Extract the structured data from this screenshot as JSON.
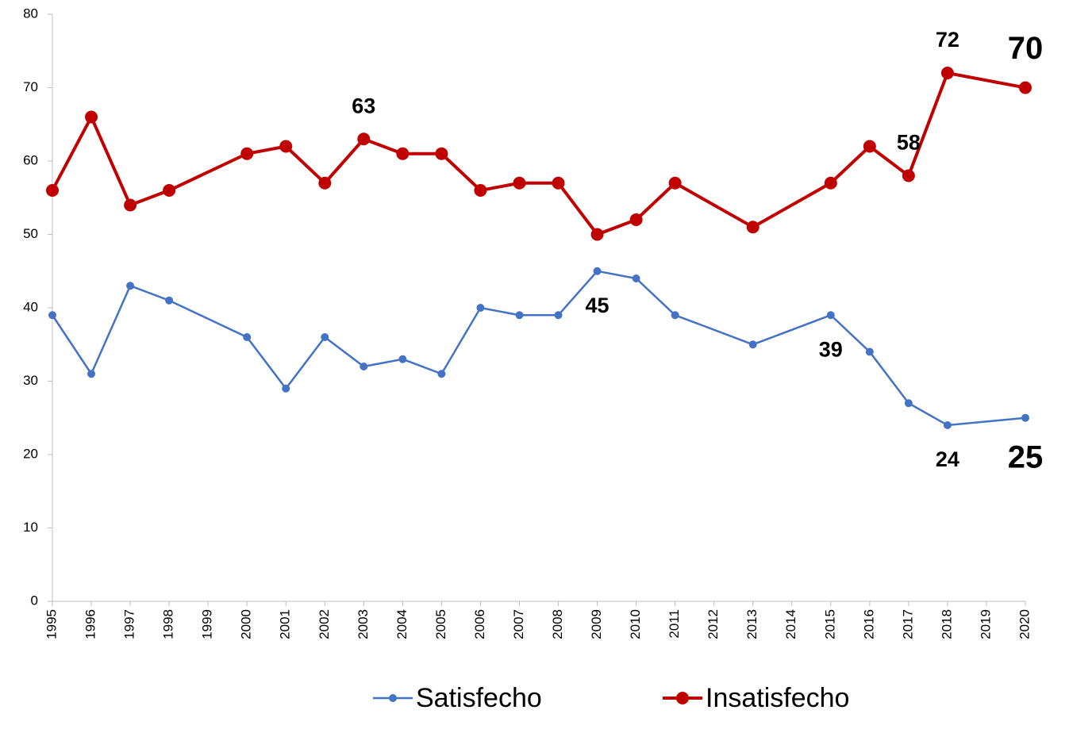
{
  "chart_data": {
    "type": "line",
    "x": [
      1995,
      1996,
      1997,
      1998,
      2000,
      2001,
      2002,
      2003,
      2004,
      2005,
      2006,
      2007,
      2008,
      2009,
      2010,
      2011,
      2013,
      2015,
      2016,
      2017,
      2018,
      2020
    ],
    "series": [
      {
        "name": "Satisfecho",
        "color": "#4472c4",
        "values": [
          39,
          31,
          43,
          41,
          36,
          29,
          36,
          32,
          33,
          31,
          40,
          39,
          39,
          45,
          44,
          39,
          35,
          39,
          34,
          27,
          24,
          25
        ],
        "labeled": [
          13,
          17,
          20,
          21
        ]
      },
      {
        "name": "Insatisfecho",
        "color": "#c00000",
        "values": [
          56,
          66,
          54,
          56,
          61,
          62,
          57,
          63,
          61,
          61,
          56,
          57,
          57,
          50,
          52,
          57,
          51,
          57,
          62,
          58,
          72,
          70
        ],
        "labeled": [
          7,
          19,
          20,
          21
        ]
      }
    ],
    "xlim": [
      1995,
      2020
    ],
    "xticks": [
      1995,
      1996,
      1997,
      1998,
      1999,
      2000,
      2001,
      2002,
      2003,
      2004,
      2005,
      2006,
      2007,
      2008,
      2009,
      2010,
      2011,
      2012,
      2013,
      2014,
      2015,
      2016,
      2017,
      2018,
      2019,
      2020
    ],
    "ylim": [
      0,
      80
    ],
    "yticks": [
      0,
      10,
      20,
      30,
      40,
      50,
      60,
      70,
      80
    ],
    "legend": "bottom"
  }
}
